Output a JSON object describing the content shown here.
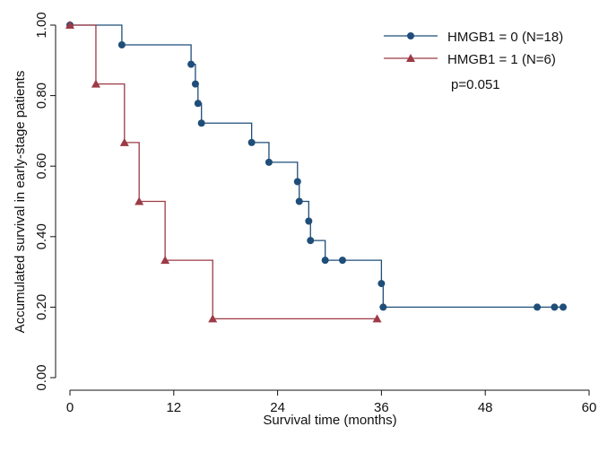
{
  "chart_data": {
    "type": "line",
    "title": "",
    "xlabel": "Survival time (months)",
    "ylabel": "Accumulated survival in early-stage patients",
    "xlim": [
      0,
      60
    ],
    "ylim": [
      0,
      1
    ],
    "xticks": [
      0,
      12,
      24,
      36,
      48,
      60
    ],
    "yticks": [
      "0.00",
      "0.20",
      "0.40",
      "0.60",
      "0.80",
      "1.00"
    ],
    "grid": false,
    "legend_position": "top-right",
    "annotation": "p=0.051",
    "series": [
      {
        "name": "HMGB1 = 0 (N=18)",
        "color": "#1f4e79",
        "marker": "circle",
        "steps": [
          [
            0,
            1.0
          ],
          [
            6,
            0.944
          ],
          [
            14,
            0.889
          ],
          [
            14.5,
            0.833
          ],
          [
            14.8,
            0.778
          ],
          [
            15.2,
            0.722
          ],
          [
            21,
            0.667
          ],
          [
            23,
            0.611
          ],
          [
            26.3,
            0.556
          ],
          [
            26.5,
            0.5
          ],
          [
            27.6,
            0.444
          ],
          [
            27.8,
            0.389
          ],
          [
            29.5,
            0.333
          ],
          [
            36,
            0.267
          ],
          [
            36.2,
            0.2
          ]
        ],
        "end_x": 57,
        "markers": [
          [
            0,
            1.0
          ],
          [
            6,
            0.944
          ],
          [
            14,
            0.889
          ],
          [
            14.5,
            0.833
          ],
          [
            14.8,
            0.778
          ],
          [
            15.2,
            0.722
          ],
          [
            21,
            0.667
          ],
          [
            23,
            0.611
          ],
          [
            26.3,
            0.556
          ],
          [
            26.5,
            0.5
          ],
          [
            27.6,
            0.444
          ],
          [
            27.8,
            0.389
          ],
          [
            29.5,
            0.333
          ],
          [
            31.5,
            0.333
          ],
          [
            36,
            0.267
          ],
          [
            36.2,
            0.2
          ],
          [
            54,
            0.2
          ],
          [
            56,
            0.2
          ],
          [
            57,
            0.2
          ]
        ]
      },
      {
        "name": "HMGB1 = 1 (N=6)",
        "color": "#9c3a46",
        "marker": "triangle",
        "steps": [
          [
            0,
            1.0
          ],
          [
            3,
            0.833
          ],
          [
            6.3,
            0.667
          ],
          [
            8,
            0.5
          ],
          [
            11,
            0.333
          ],
          [
            16.5,
            0.167
          ]
        ],
        "end_x": 35.5,
        "markers": [
          [
            0,
            1.0
          ],
          [
            3,
            0.833
          ],
          [
            6.3,
            0.667
          ],
          [
            8,
            0.5
          ],
          [
            11,
            0.333
          ],
          [
            16.5,
            0.167
          ],
          [
            35.5,
            0.167
          ]
        ]
      }
    ]
  }
}
